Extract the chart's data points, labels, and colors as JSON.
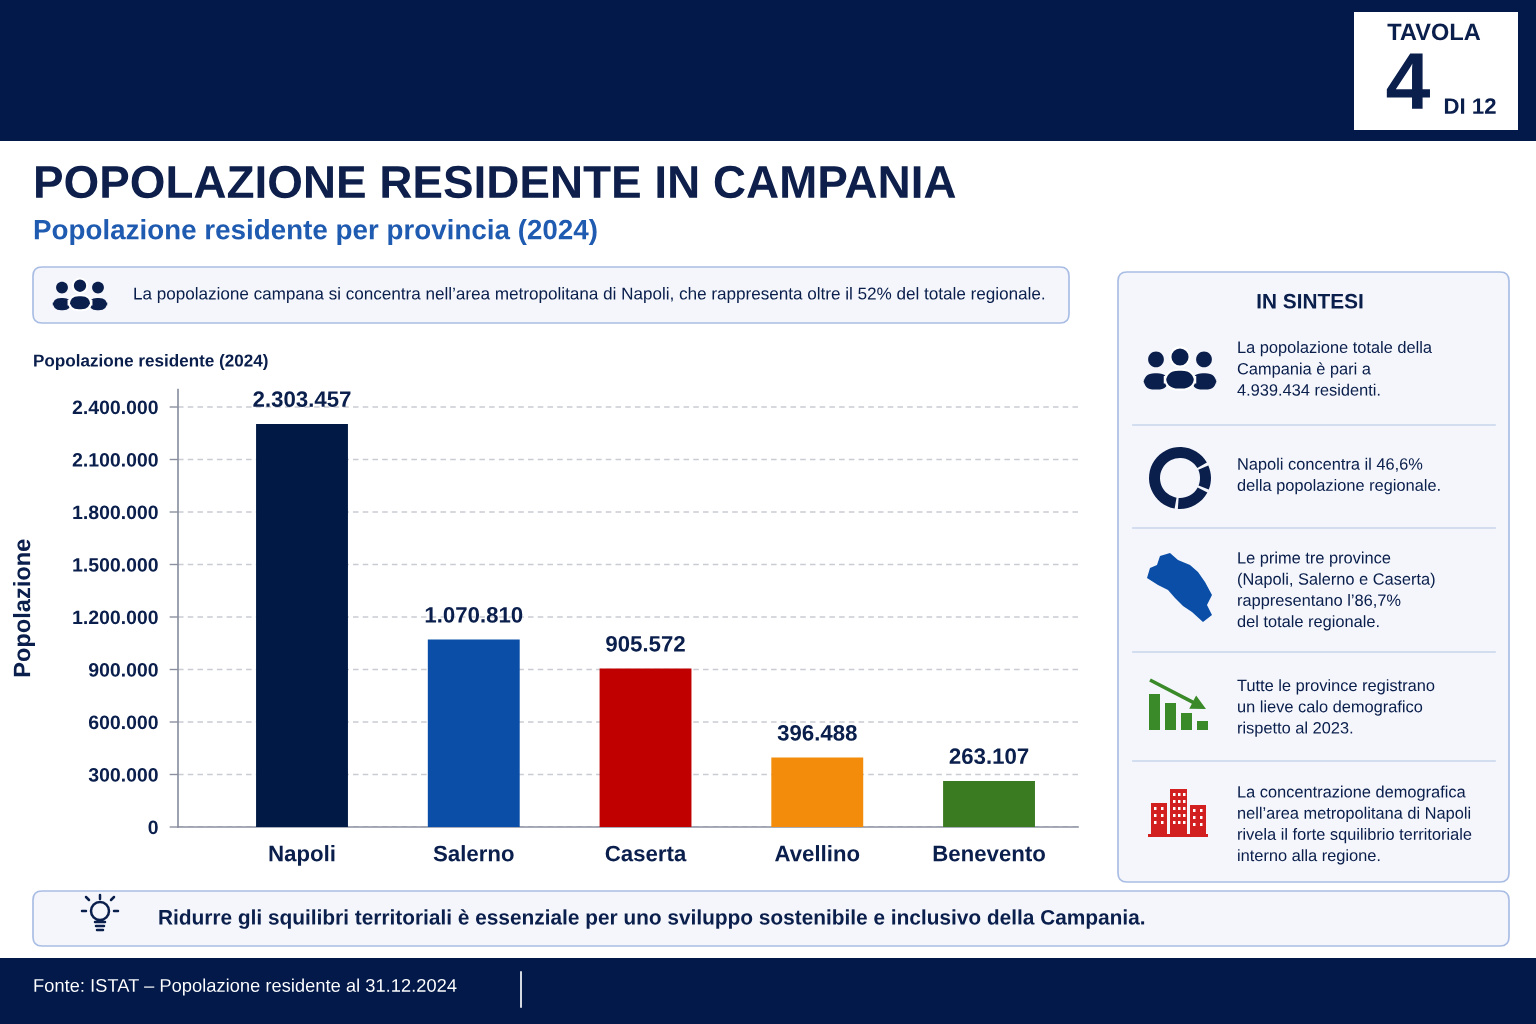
{
  "chart_data": {
    "type": "bar",
    "title": "POPOLAZIONE RESIDENTE IN CAMPANIA",
    "subtitle": "Popolazione residente per provincia (2024)",
    "ylabel": "Popolazione",
    "categories": [
      "Napoli",
      "Salerno",
      "Caserta",
      "Avellino",
      "Benevento"
    ],
    "values": [
      2303457,
      1070810,
      905572,
      396488,
      263107
    ],
    "colors": [
      "#011a45",
      "#0a4ea8",
      "#c00000",
      "#f28c0a",
      "#3a7a20"
    ],
    "value_labels": [
      "2.303.457",
      "1.070.810",
      "905.572",
      "396.488",
      "263.107"
    ],
    "ylim": [
      0,
      2500000
    ],
    "yticks": [
      0,
      {
        "value": 300000,
        "label": "300.000"
      },
      {
        "value": 600000,
        "label": "600.000"
      },
      {
        "value": 900000,
        "label": "900.000"
      },
      {
        "value": 1200000,
        "label": "1.200.000"
      },
      {
        "value": 1500000,
        "label": "1.500.000"
      },
      {
        "value": 1800000,
        "label": "1.800.000"
      },
      {
        "value": 2100000,
        "label": "2.100.000"
      },
      {
        "value": 2400000,
        "label": "2.400.000"
      }
    ],
    "grid": "y",
    "annotations": [
      "TAVOLA",
      "4",
      "DI 12",
      "La popolazione campana si concentra nell’area metropolitana di Napoli, che rappresenta oltre il 52% del totale regionale.",
      "Popolazione residente (2024)",
      "IN SINTESI",
      "La popolazione totale della\nCampania è pari a\n4.939.434 residenti.",
      "Napoli concentra il 46,6%\ndella popolazione regionale.",
      "Le prime tre province\n(Napoli, Salerno e Caserta)\nrappresentano l’86,7%\ndel totale regionale.",
      "Tutte le province registrano\nun lieve calo demografico\nrispetto al 2023.",
      "La concentrazione demografica\nnell’area metropolitana di Napoli\nrivela il forte squilibrio territoriale\ninterno alla regione.",
      "Ridurre gli squilibri territoriali è essenziale per uno sviluppo sostenibile e inclusivo della Campania.",
      "Fonte: ISTAT – Popolazione residente al 31.12.2024"
    ]
  }
}
